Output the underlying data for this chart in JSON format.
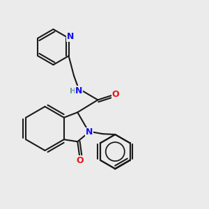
{
  "background_color": "#ebebeb",
  "bond_color": "#1a1a1a",
  "N_color": "#1010ee",
  "O_color": "#ee1010",
  "H_color": "#6a9a9a",
  "lw": 1.5,
  "dbo": 0.013,
  "figsize": [
    3.0,
    3.0
  ],
  "dpi": 100,
  "xlim": [
    0,
    1
  ],
  "ylim": [
    0,
    1
  ]
}
